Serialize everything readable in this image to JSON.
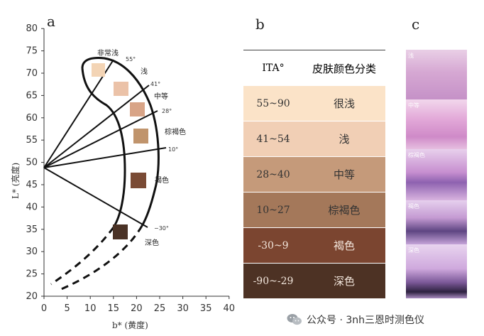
{
  "panels": {
    "a": "a",
    "b": "b",
    "c": "c"
  },
  "chart_a": {
    "x_ticks": [
      "0",
      "5",
      "10",
      "15",
      "20",
      "25",
      "30",
      "35",
      "40"
    ],
    "y_ticks": [
      "20",
      "25",
      "30",
      "35",
      "40",
      "45",
      "50",
      "55",
      "60",
      "65",
      "70",
      "75",
      "80"
    ],
    "xlabel": "b* (黄度)",
    "ylabel": "L* (亮度)",
    "categories": [
      "非常浅",
      "浅",
      "中等",
      "棕褐色",
      "褐色",
      "深色"
    ],
    "angles": [
      "55°",
      "41°",
      "28°",
      "10°",
      "−30°"
    ],
    "swatch_colors": [
      "#f3d4b5",
      "#ebc2a8",
      "#d8a487",
      "#c0946c",
      "#7a4b35",
      "#4a3226"
    ]
  },
  "table": {
    "header": {
      "ita": "ITA°",
      "class": "皮肤颜色分类"
    },
    "rows": [
      {
        "range": "55~90",
        "label": "很浅",
        "bg": "#fbe3c8"
      },
      {
        "range": "41~54",
        "label": "浅",
        "bg": "#f1cfb5"
      },
      {
        "range": "28~40",
        "label": "中等",
        "bg": "#c59a7a"
      },
      {
        "range": "10~27",
        "label": "棕褐色",
        "bg": "#a4785a"
      },
      {
        "range": "-30~9",
        "label": "褐色",
        "bg": "#7b4530"
      },
      {
        "range": "-90~-29",
        "label": "深色",
        "bg": "#4d3224"
      }
    ]
  },
  "panel_c": {
    "labels": [
      "浅",
      "中等",
      "棕褐色",
      "褐色",
      "深色"
    ]
  },
  "watermark": {
    "text": "公众号 · 3nh三恩时测色仪"
  }
}
